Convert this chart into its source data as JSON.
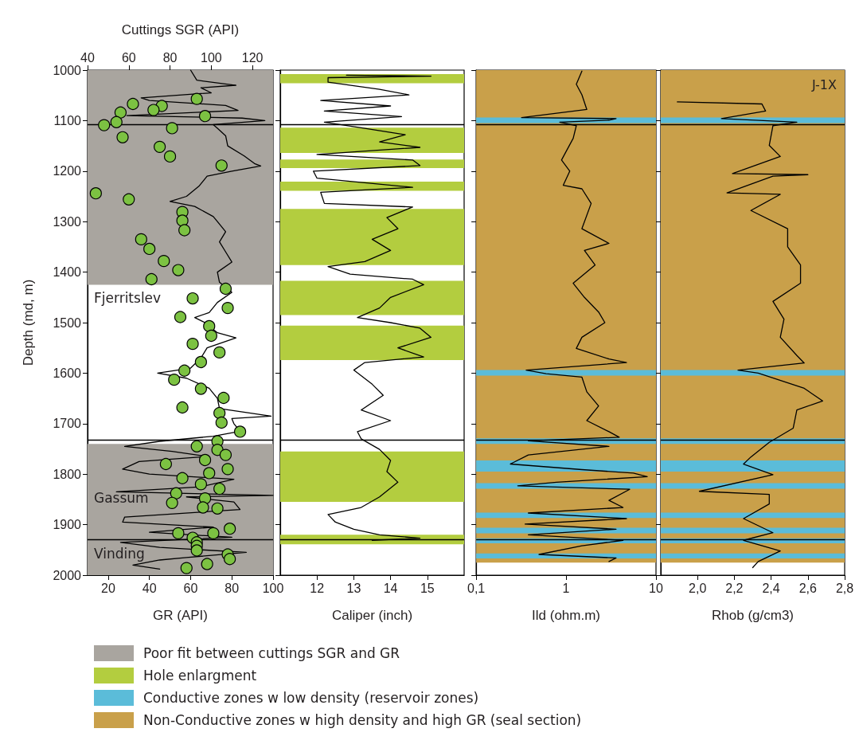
{
  "chart_data": [
    {
      "type": "line",
      "x2label": "Cuttings SGR (API)",
      "xlabel": "GR (API)",
      "ylabel": "Depth (md, m)",
      "xlim": [
        10,
        100
      ],
      "xticks": [
        20,
        40,
        60,
        80,
        100
      ],
      "x2lim": [
        40,
        130
      ],
      "x2ticks": [
        40,
        60,
        80,
        100,
        120
      ],
      "ylim": [
        2000,
        1000
      ],
      "yticks": [
        1000,
        1100,
        1200,
        1300,
        1400,
        1500,
        1600,
        1700,
        1800,
        1900,
        2000
      ],
      "marker": "none",
      "line_style": "solid",
      "legend": "bottom",
      "series": [
        {
          "color": "#000000",
          "x": [
            60,
            63,
            82,
            65,
            70,
            36,
            40,
            77,
            83,
            29,
            85,
            96,
            71,
            73,
            77,
            78,
            86,
            91,
            94,
            80,
            68,
            64,
            58,
            50,
            62,
            71,
            73,
            77,
            74,
            77,
            80,
            73,
            74,
            80,
            73,
            69,
            62,
            67,
            73,
            82,
            68,
            65,
            60,
            44,
            58,
            69,
            73,
            74,
            99,
            80,
            81,
            84,
            71,
            45,
            28,
            51,
            68,
            35,
            27,
            40,
            81,
            65,
            24,
            100,
            58,
            81,
            84,
            28,
            27,
            71,
            40,
            80,
            26,
            45,
            87,
            58,
            45,
            32,
            45
          ],
          "values": [
            1000,
            1020,
            1030,
            1035,
            1045,
            1055,
            1060,
            1070,
            1080,
            1090,
            1095,
            1100,
            1108,
            1115,
            1130,
            1150,
            1170,
            1185,
            1190,
            1200,
            1210,
            1230,
            1250,
            1260,
            1270,
            1290,
            1300,
            1320,
            1340,
            1360,
            1380,
            1400,
            1420,
            1440,
            1460,
            1480,
            1490,
            1500,
            1520,
            1530,
            1550,
            1570,
            1590,
            1600,
            1610,
            1630,
            1650,
            1670,
            1685,
            1690,
            1700,
            1715,
            1725,
            1735,
            1745,
            1755,
            1765,
            1775,
            1790,
            1800,
            1810,
            1825,
            1835,
            1842,
            1845,
            1855,
            1870,
            1885,
            1895,
            1905,
            1915,
            1925,
            1935,
            1945,
            1955,
            1965,
            1970,
            1980,
            1988
          ]
        },
        {
          "type": "scatter",
          "axis": "x2",
          "marker": "circle",
          "color": "#7cc242",
          "x": [
            93,
            62,
            76,
            72,
            56,
            97,
            54,
            48,
            81,
            57,
            75,
            80,
            105,
            44,
            60,
            86,
            86,
            87,
            66,
            70,
            77,
            84,
            71,
            107,
            91,
            108,
            85,
            99,
            100,
            91,
            104,
            95,
            87,
            82,
            95,
            106,
            86,
            104,
            105,
            114,
            103,
            93,
            103,
            107,
            97,
            78,
            108,
            99,
            86,
            95,
            104,
            83,
            97,
            81,
            96,
            103,
            109,
            84,
            101,
            91,
            93,
            93,
            93,
            108,
            109,
            98,
            88
          ],
          "values": [
            1057,
            1067,
            1071,
            1079,
            1084,
            1091,
            1103,
            1109,
            1115,
            1133,
            1152,
            1171,
            1189,
            1244,
            1256,
            1281,
            1298,
            1317,
            1335,
            1354,
            1378,
            1396,
            1414,
            1433,
            1452,
            1471,
            1489,
            1507,
            1526,
            1542,
            1559,
            1578,
            1595,
            1613,
            1631,
            1649,
            1668,
            1679,
            1698,
            1716,
            1735,
            1745,
            1752,
            1762,
            1772,
            1780,
            1790,
            1798,
            1808,
            1820,
            1829,
            1838,
            1848,
            1857,
            1866,
            1868,
            1908,
            1917,
            1917,
            1926,
            1935,
            1942,
            1951,
            1959,
            1968,
            1978,
            1986
          ]
        }
      ],
      "bands": [
        {
          "axis": "y",
          "from": 1000,
          "to": 1425,
          "color": "#a9a59f",
          "label": "Poor fit between cuttings SGR and GR"
        },
        {
          "axis": "y",
          "from": 1740,
          "to": 2000,
          "color": "#a9a59f"
        }
      ],
      "ref_lines": [
        {
          "axis": "y",
          "value": 1108,
          "color": "#000000"
        },
        {
          "axis": "y",
          "value": 1733,
          "color": "#000000"
        },
        {
          "axis": "y",
          "value": 1930,
          "color": "#000000"
        }
      ],
      "annotations": [
        "Fjerritslev",
        "Gassum",
        "Vinding"
      ]
    },
    {
      "type": "line",
      "xlabel": "Caliper (inch)",
      "xlim": [
        11,
        16
      ],
      "xticks": [
        12,
        13,
        14,
        15
      ],
      "ylim": [
        2000,
        1000
      ],
      "yticks": [
        1000,
        1100,
        1200,
        1300,
        1400,
        1500,
        1600,
        1700,
        1800,
        1900,
        2000
      ],
      "tick_labels": "x",
      "marker": "none",
      "line_style": "solid",
      "series": [
        {
          "color": "#000000",
          "x": [
            12.8,
            15.1,
            12.3,
            12.3,
            13.7,
            14.5,
            12.1,
            14.0,
            12.2,
            14.3,
            12.2,
            13.2,
            14.4,
            13.7,
            14.8,
            12.0,
            14.6,
            14.8,
            11.9,
            12.0,
            14.6,
            12.1,
            12.2,
            14.6,
            13.9,
            14.2,
            13.5,
            14.0,
            13.3,
            12.3,
            12.9,
            14.6,
            14.9,
            14.0,
            13.7,
            13.1,
            14.0,
            14.8,
            15.1,
            14.2,
            14.9,
            13.3,
            13.0,
            13.5,
            13.8,
            13.2,
            14.0,
            13.1,
            13.2,
            13.7,
            14.0,
            13.9,
            14.2,
            13.7,
            13.2,
            12.3,
            12.5,
            13.0,
            13.7,
            14.8,
            13.5
          ],
          "values": [
            1010,
            1012,
            1015,
            1024,
            1038,
            1049,
            1060,
            1071,
            1081,
            1092,
            1103,
            1114,
            1128,
            1142,
            1153,
            1167,
            1178,
            1189,
            1200,
            1214,
            1232,
            1242,
            1264,
            1271,
            1292,
            1314,
            1335,
            1357,
            1379,
            1389,
            1404,
            1414,
            1425,
            1450,
            1471,
            1490,
            1500,
            1511,
            1529,
            1550,
            1568,
            1579,
            1594,
            1622,
            1644,
            1673,
            1694,
            1716,
            1730,
            1751,
            1773,
            1795,
            1816,
            1845,
            1866,
            1880,
            1895,
            1909,
            1920,
            1927,
            1931
          ]
        }
      ],
      "bands": [
        {
          "axis": "y",
          "from": 1008,
          "to": 1026,
          "color": "#b3cd3f",
          "label": "Hole enlargment"
        },
        {
          "axis": "y",
          "from": 1114,
          "to": 1164,
          "color": "#b3cd3f"
        },
        {
          "axis": "y",
          "from": 1177,
          "to": 1194,
          "color": "#b3cd3f"
        },
        {
          "axis": "y",
          "from": 1221,
          "to": 1239,
          "color": "#b3cd3f"
        },
        {
          "axis": "y",
          "from": 1275,
          "to": 1386,
          "color": "#b3cd3f"
        },
        {
          "axis": "y",
          "from": 1417,
          "to": 1485,
          "color": "#b3cd3f"
        },
        {
          "axis": "y",
          "from": 1506,
          "to": 1574,
          "color": "#b3cd3f"
        },
        {
          "axis": "y",
          "from": 1755,
          "to": 1855,
          "color": "#b3cd3f"
        },
        {
          "axis": "y",
          "from": 1920,
          "to": 1939,
          "color": "#b3cd3f"
        }
      ],
      "ref_lines": [
        {
          "axis": "y",
          "value": 1108,
          "color": "#000000"
        },
        {
          "axis": "y",
          "value": 1733,
          "color": "#000000"
        },
        {
          "axis": "y",
          "value": 1930,
          "color": "#000000"
        }
      ]
    },
    {
      "type": "line",
      "xlabel": "Ild (ohm.m)",
      "log": "x",
      "xlim": [
        0.1,
        10
      ],
      "xticks": [
        {
          "value": 0.1,
          "label": "0,1"
        },
        1,
        10
      ],
      "ylim": [
        2000,
        1000
      ],
      "yticks": [
        1000,
        1100,
        1200,
        1300,
        1400,
        1500,
        1600,
        1700,
        1800,
        1900,
        2000
      ],
      "tick_labels": "x",
      "marker": "none",
      "line_style": "solid",
      "series": [
        {
          "color": "#000000",
          "x": [
            1.5,
            1.3,
            1.5,
            1.7,
            0.32,
            3.6,
            3.0,
            0.85,
            1.3,
            1.2,
            0.89,
            1.1,
            0.93,
            1.5,
            1.9,
            1.5,
            3.0,
            1.6,
            2.1,
            1.2,
            1.6,
            2.3,
            2.7,
            1.5,
            1.3,
            3.0,
            4.7,
            0.36,
            0.6,
            1.5,
            1.7,
            2.3,
            1.7,
            3.0,
            3.9,
            0.38,
            3.0,
            0.38,
            0.24,
            1.5,
            5.6,
            8.0,
            0.78,
            0.29,
            5.1,
            3.0,
            4.3,
            0.38,
            4.7,
            0.35,
            3.6,
            0.38,
            4.3,
            1.5,
            0.5,
            3.6,
            3.0
          ],
          "values": [
            1002,
            1028,
            1049,
            1078,
            1094,
            1096,
            1099,
            1103,
            1110,
            1135,
            1178,
            1200,
            1228,
            1235,
            1264,
            1314,
            1343,
            1357,
            1386,
            1422,
            1450,
            1479,
            1500,
            1529,
            1551,
            1572,
            1579,
            1594,
            1601,
            1608,
            1637,
            1665,
            1694,
            1716,
            1727,
            1734,
            1745,
            1762,
            1780,
            1791,
            1798,
            1805,
            1816,
            1823,
            1830,
            1852,
            1866,
            1877,
            1888,
            1899,
            1909,
            1920,
            1931,
            1942,
            1959,
            1966,
            1973
          ]
        }
      ],
      "bands": [
        {
          "axis": "y",
          "from": 1000,
          "to": 1975,
          "color": "#c9a04a"
        },
        {
          "axis": "y",
          "from": 1094,
          "to": 1105,
          "color": "#5bbcd9",
          "label": "Conductive zones w low density (reservoir zones)"
        },
        {
          "axis": "y",
          "from": 1594,
          "to": 1605,
          "color": "#5bbcd9"
        },
        {
          "axis": "y",
          "from": 1729,
          "to": 1740,
          "color": "#5bbcd9"
        },
        {
          "axis": "y",
          "from": 1773,
          "to": 1795,
          "color": "#5bbcd9"
        },
        {
          "axis": "y",
          "from": 1818,
          "to": 1829,
          "color": "#5bbcd9"
        },
        {
          "axis": "y",
          "from": 1876,
          "to": 1887,
          "color": "#5bbcd9"
        },
        {
          "axis": "y",
          "from": 1906,
          "to": 1917,
          "color": "#5bbcd9"
        },
        {
          "axis": "y",
          "from": 1927,
          "to": 1937,
          "color": "#5bbcd9"
        },
        {
          "axis": "y",
          "from": 1957,
          "to": 1967,
          "color": "#5bbcd9"
        }
      ],
      "ref_lines": [
        {
          "axis": "y",
          "value": 1108,
          "color": "#000000"
        },
        {
          "axis": "y",
          "value": 1733,
          "color": "#000000"
        },
        {
          "axis": "y",
          "value": 1930,
          "color": "#000000"
        }
      ]
    },
    {
      "type": "line",
      "xlabel": "Rhob (g/cm3)",
      "xlim": [
        1.8,
        2.8
      ],
      "xticks": [
        {
          "value": 2.0,
          "label": "2,0"
        },
        {
          "value": 2.2,
          "label": "2,2"
        },
        {
          "value": 2.4,
          "label": "2,4"
        },
        {
          "value": 2.6,
          "label": "2,6"
        },
        {
          "value": 2.8,
          "label": "2,8"
        }
      ],
      "ylim": [
        2000,
        1000
      ],
      "yticks": [
        1000,
        1100,
        1200,
        1300,
        1400,
        1500,
        1600,
        1700,
        1800,
        1900,
        2000
      ],
      "tick_labels": "x",
      "marker": "none",
      "line_style": "solid",
      "series": [
        {
          "color": "#000000",
          "x": [
            1.89,
            2.35,
            2.37,
            2.13,
            2.54,
            2.41,
            2.39,
            2.45,
            2.19,
            2.6,
            2.41,
            2.16,
            2.45,
            2.29,
            2.49,
            2.49,
            2.56,
            2.56,
            2.41,
            2.47,
            2.45,
            2.54,
            2.58,
            2.22,
            2.33,
            2.58,
            2.68,
            2.54,
            2.52,
            2.39,
            2.29,
            2.25,
            2.41,
            2.01,
            2.39,
            2.39,
            2.25,
            2.41,
            2.25,
            2.45,
            2.33,
            2.3
          ],
          "values": [
            1063,
            1067,
            1081,
            1096,
            1103,
            1110,
            1149,
            1171,
            1205,
            1207,
            1210,
            1243,
            1246,
            1278,
            1314,
            1350,
            1386,
            1422,
            1458,
            1493,
            1529,
            1565,
            1580,
            1594,
            1600,
            1630,
            1655,
            1673,
            1709,
            1737,
            1766,
            1780,
            1801,
            1834,
            1840,
            1859,
            1888,
            1916,
            1931,
            1952,
            1973,
            1985
          ]
        }
      ],
      "bands": [
        {
          "axis": "y",
          "from": 1000,
          "to": 1975,
          "color": "#c9a04a",
          "label": "Non-Conductive zones w high density and high GR (seal section)"
        },
        {
          "axis": "y",
          "from": 1094,
          "to": 1105,
          "color": "#5bbcd9"
        },
        {
          "axis": "y",
          "from": 1594,
          "to": 1605,
          "color": "#5bbcd9"
        },
        {
          "axis": "y",
          "from": 1729,
          "to": 1740,
          "color": "#5bbcd9"
        },
        {
          "axis": "y",
          "from": 1773,
          "to": 1795,
          "color": "#5bbcd9"
        },
        {
          "axis": "y",
          "from": 1818,
          "to": 1829,
          "color": "#5bbcd9"
        },
        {
          "axis": "y",
          "from": 1876,
          "to": 1887,
          "color": "#5bbcd9"
        },
        {
          "axis": "y",
          "from": 1906,
          "to": 1917,
          "color": "#5bbcd9"
        },
        {
          "axis": "y",
          "from": 1927,
          "to": 1937,
          "color": "#5bbcd9"
        },
        {
          "axis": "y",
          "from": 1957,
          "to": 1967,
          "color": "#5bbcd9"
        }
      ],
      "ref_lines": [
        {
          "axis": "y",
          "value": 1108,
          "color": "#000000"
        },
        {
          "axis": "y",
          "value": 1733,
          "color": "#000000"
        },
        {
          "axis": "y",
          "value": 1930,
          "color": "#000000"
        }
      ],
      "annotations": [
        "J-1X"
      ]
    }
  ]
}
